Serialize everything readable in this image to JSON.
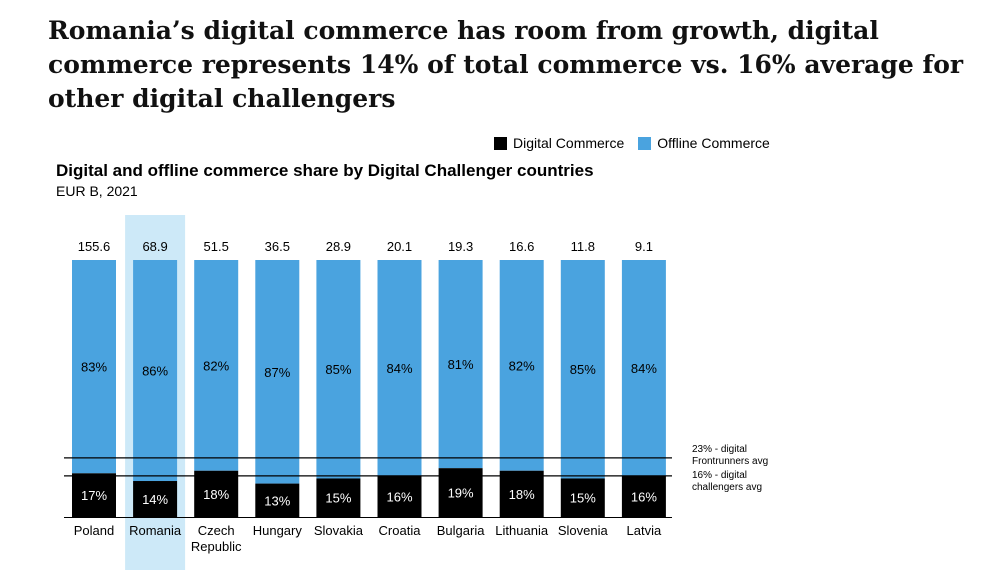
{
  "headline": "Romania’s digital commerce has room from growth, digital commerce represents 14% of total commerce vs. 16% average for other digital challengers",
  "colors": {
    "digital": "#000000",
    "offline": "#4aa3df",
    "highlight": "#cde9f8",
    "axis": "#000000"
  },
  "legend": {
    "digital_label": "Digital Commerce",
    "offline_label": "Offline Commerce"
  },
  "chart_data": {
    "type": "bar",
    "stacked": true,
    "normalized": true,
    "title": "Digital and offline commerce share by Digital Challenger countries",
    "subtitle": "EUR B, 2021",
    "categories": [
      "Poland",
      "Romania",
      "Czech Republic",
      "Hungary",
      "Slovakia",
      "Croatia",
      "Bulgaria",
      "Lithuania",
      "Slovenia",
      "Latvia"
    ],
    "category_lines": [
      [
        "Poland"
      ],
      [
        "Romania"
      ],
      [
        "Czech",
        "Republic"
      ],
      [
        "Hungary"
      ],
      [
        "Slovakia"
      ],
      [
        "Croatia"
      ],
      [
        "Bulgaria"
      ],
      [
        "Lithuania"
      ],
      [
        "Slovenia"
      ],
      [
        "Latvia"
      ]
    ],
    "totals": [
      "155.6",
      "68.9",
      "51.5",
      "36.5",
      "28.9",
      "20.1",
      "19.3",
      "16.6",
      "11.8",
      "9.1"
    ],
    "series": [
      {
        "name": "Digital Commerce",
        "values": [
          17,
          14,
          18,
          13,
          15,
          16,
          19,
          18,
          15,
          16
        ],
        "labels": [
          "17%",
          "14%",
          "18%",
          "13%",
          "15%",
          "16%",
          "19%",
          "18%",
          "15%",
          "16%"
        ]
      },
      {
        "name": "Offline Commerce",
        "values": [
          83,
          86,
          82,
          87,
          85,
          84,
          81,
          82,
          85,
          84
        ],
        "labels": [
          "83%",
          "86%",
          "82%",
          "87%",
          "85%",
          "84%",
          "81%",
          "82%",
          "85%",
          "84%"
        ]
      }
    ],
    "highlight_category": "Romania",
    "reference_lines": [
      {
        "value": 23,
        "label_lines": [
          "23% - digital",
          "Frontrunners avg"
        ]
      },
      {
        "value": 16,
        "label_lines": [
          "16% - digital",
          "challengers avg"
        ]
      }
    ],
    "ylim": [
      0,
      100
    ]
  }
}
